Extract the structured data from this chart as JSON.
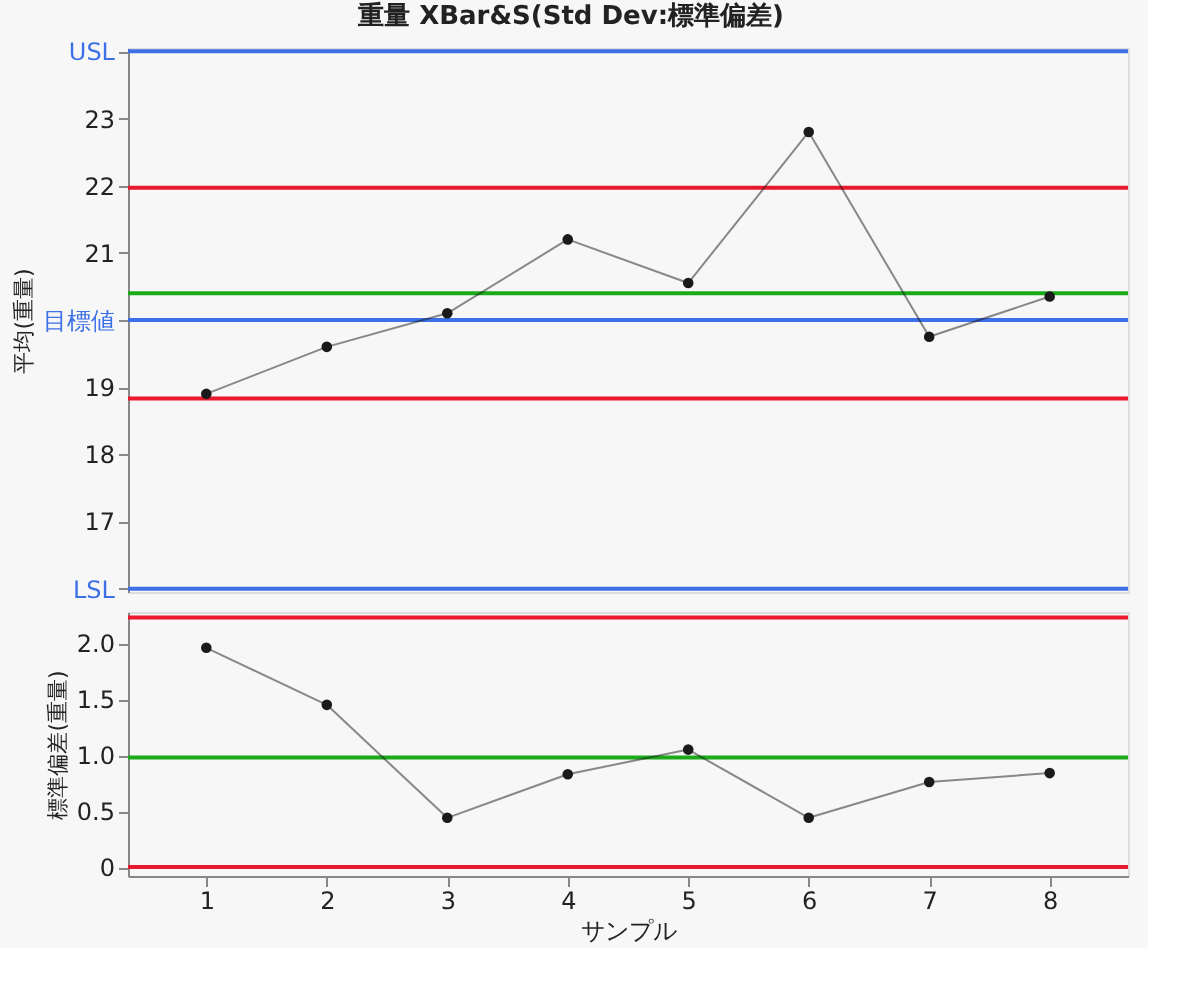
{
  "chart_data": [
    {
      "type": "line",
      "title": "重量  XBar&S(Std Dev:標準偏差)",
      "ylabel": "平均(重量)",
      "categories": [
        "1",
        "2",
        "3",
        "4",
        "5",
        "6",
        "7",
        "8"
      ],
      "series": [
        {
          "color": "#1a1a1a",
          "values": [
            18.9,
            19.6,
            20.1,
            21.2,
            20.55,
            22.8,
            19.75,
            20.35
          ]
        }
      ],
      "marker": "circle",
      "line_style": "solid",
      "ylim": [
        15.95,
        24.05
      ],
      "yticks": [
        {
          "value": 16,
          "label": "LSL"
        },
        17,
        18,
        19,
        {
          "value": 20,
          "label": "目標値"
        },
        21,
        22,
        23,
        {
          "value": 24,
          "label": "USL"
        }
      ],
      "ref_lines": [
        {
          "axis": "y",
          "value": 24,
          "color": "#3d6fe6"
        },
        {
          "axis": "y",
          "value": 20,
          "color": "#3d6fe6"
        },
        {
          "axis": "y",
          "value": 16,
          "color": "#3d6fe6"
        },
        {
          "axis": "y",
          "value": 21.97,
          "color": "#e8192c"
        },
        {
          "axis": "y",
          "value": 20.4,
          "color": "#1aaa1a"
        },
        {
          "axis": "y",
          "value": 18.83,
          "color": "#e8192c"
        }
      ],
      "grid": false,
      "legend": false,
      "tick_labels": "y"
    },
    {
      "type": "line",
      "xlabel": "サンプル",
      "ylabel": "標準偏差(重量)",
      "categories": [
        "1",
        "2",
        "3",
        "4",
        "5",
        "6",
        "7",
        "8"
      ],
      "series": [
        {
          "color": "#1a1a1a",
          "values": [
            1.96,
            1.45,
            0.44,
            0.83,
            1.05,
            0.44,
            0.76,
            0.84
          ]
        }
      ],
      "marker": "circle",
      "line_style": "solid",
      "ylim": [
        -0.08,
        2.28
      ],
      "yticks": [
        0,
        {
          "value": 0.5,
          "label": "0.5"
        },
        {
          "value": 1,
          "label": "1.0"
        },
        {
          "value": 1.5,
          "label": "1.5"
        },
        {
          "value": 2,
          "label": "2.0"
        }
      ],
      "ref_lines": [
        {
          "axis": "y",
          "value": 2.23,
          "color": "#e8192c"
        },
        {
          "axis": "y",
          "value": 0.98,
          "color": "#1aaa1a"
        },
        {
          "axis": "y",
          "value": 0,
          "color": "#e8192c"
        }
      ],
      "grid": false,
      "legend": false
    }
  ]
}
